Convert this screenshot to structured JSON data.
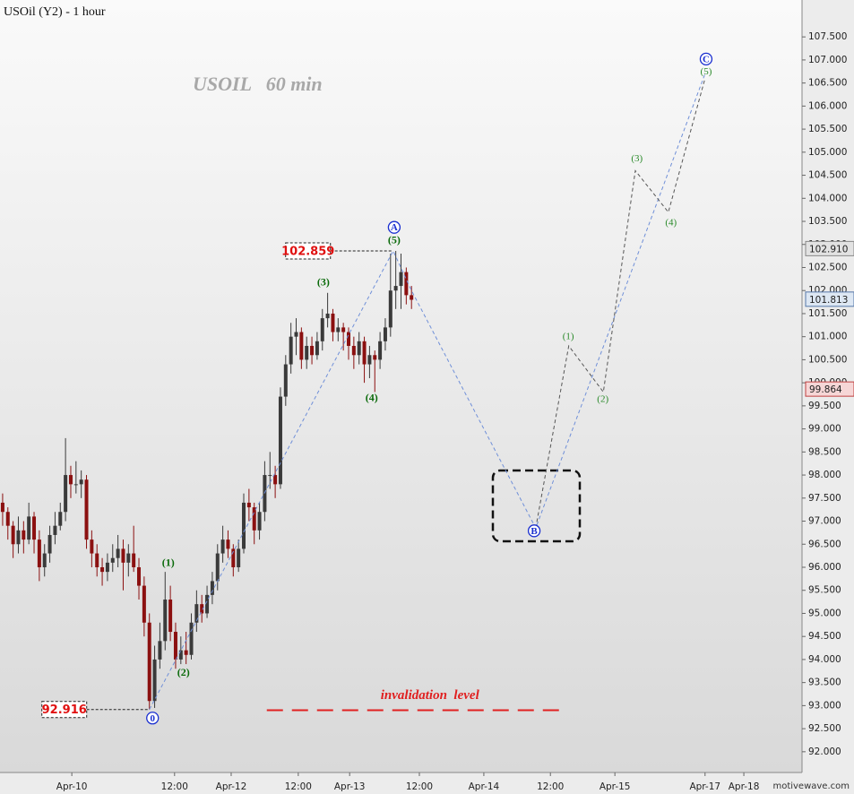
{
  "chart_data": {
    "type": "candlestick",
    "title": "USOil (Y2) - 1 hour",
    "watermark": "USOIL   60 min",
    "footer": "motivewave.com",
    "up_color": "#3a3a3a",
    "down_color": "#8b1010",
    "xlim": [
      -0.5,
      152.5
    ],
    "xticks": [
      {
        "value": 13.2,
        "label": "Apr-10"
      },
      {
        "value": 32.8,
        "label": "12:00"
      },
      {
        "value": 43.6,
        "label": "Apr-12"
      },
      {
        "value": 56.4,
        "label": "12:00"
      },
      {
        "value": 66.2,
        "label": "Apr-13"
      },
      {
        "value": 79.5,
        "label": "12:00"
      },
      {
        "value": 91.8,
        "label": "Apr-14"
      },
      {
        "value": 104.5,
        "label": "12:00"
      },
      {
        "value": 116.8,
        "label": "Apr-15"
      },
      {
        "value": 134,
        "label": "Apr-17"
      },
      {
        "value": 141.4,
        "label": "Apr-18"
      }
    ],
    "ylim": [
      91.55,
      108.3
    ],
    "yticks": [
      {
        "value": 92,
        "label": "92.000"
      },
      {
        "value": 92.5,
        "label": "92.500"
      },
      {
        "value": 93,
        "label": "93.000"
      },
      {
        "value": 93.5,
        "label": "93.500"
      },
      {
        "value": 94,
        "label": "94.000"
      },
      {
        "value": 94.5,
        "label": "94.500"
      },
      {
        "value": 95,
        "label": "95.000"
      },
      {
        "value": 95.5,
        "label": "95.500"
      },
      {
        "value": 96,
        "label": "96.000"
      },
      {
        "value": 96.5,
        "label": "96.500"
      },
      {
        "value": 97,
        "label": "97.000"
      },
      {
        "value": 97.5,
        "label": "97.500"
      },
      {
        "value": 98,
        "label": "98.000"
      },
      {
        "value": 98.5,
        "label": "98.500"
      },
      {
        "value": 99,
        "label": "99.000"
      },
      {
        "value": 99.5,
        "label": "99.500"
      },
      {
        "value": 100,
        "label": "100.000"
      },
      {
        "value": 100.5,
        "label": "100.500"
      },
      {
        "value": 101,
        "label": "101.000"
      },
      {
        "value": 101.5,
        "label": "101.500"
      },
      {
        "value": 102,
        "label": "102.000"
      },
      {
        "value": 102.5,
        "label": "102.500"
      },
      {
        "value": 103,
        "label": "103.000"
      },
      {
        "value": 103.5,
        "label": "103.500"
      },
      {
        "value": 104,
        "label": "104.000"
      },
      {
        "value": 104.5,
        "label": "104.500"
      },
      {
        "value": 105,
        "label": "105.000"
      },
      {
        "value": 105.5,
        "label": "105.500"
      },
      {
        "value": 106,
        "label": "106.000"
      },
      {
        "value": 106.5,
        "label": "106.500"
      },
      {
        "value": 107,
        "label": "107.000"
      },
      {
        "value": 107.5,
        "label": "107.500"
      }
    ],
    "ohlc": [
      [
        97.4,
        97.6,
        96.9,
        97.2
      ],
      [
        97.2,
        97.3,
        96.6,
        96.9
      ],
      [
        96.9,
        97.0,
        96.2,
        96.5
      ],
      [
        96.5,
        97.1,
        96.3,
        96.8
      ],
      [
        96.8,
        97.0,
        96.3,
        96.6
      ],
      [
        96.6,
        97.4,
        96.5,
        97.1
      ],
      [
        97.1,
        97.2,
        96.3,
        96.6
      ],
      [
        96.6,
        96.8,
        95.7,
        96.0
      ],
      [
        96.0,
        96.5,
        95.8,
        96.3
      ],
      [
        96.3,
        96.9,
        96.1,
        96.7
      ],
      [
        96.7,
        97.2,
        96.5,
        96.9
      ],
      [
        96.9,
        97.4,
        96.8,
        97.2
      ],
      [
        97.2,
        98.8,
        97.0,
        98.0
      ],
      [
        98.0,
        98.2,
        97.5,
        97.8
      ],
      [
        97.8,
        98.3,
        97.6,
        97.8
      ],
      [
        97.8,
        98.1,
        97.5,
        97.9
      ],
      [
        97.9,
        98.0,
        96.4,
        96.6
      ],
      [
        96.6,
        96.8,
        96.0,
        96.3
      ],
      [
        96.3,
        96.5,
        95.8,
        96.0
      ],
      [
        96.0,
        96.2,
        95.6,
        95.9
      ],
      [
        95.9,
        96.3,
        95.7,
        96.1
      ],
      [
        96.1,
        96.5,
        95.9,
        96.2
      ],
      [
        96.2,
        96.7,
        96.0,
        96.4
      ],
      [
        96.4,
        96.6,
        95.5,
        96.1
      ],
      [
        96.1,
        96.5,
        95.8,
        96.3
      ],
      [
        96.3,
        96.9,
        95.9,
        96.0
      ],
      [
        96.0,
        96.2,
        95.3,
        95.6
      ],
      [
        95.6,
        95.8,
        94.5,
        94.8
      ],
      [
        94.8,
        95.0,
        92.916,
        93.1
      ],
      [
        93.1,
        94.3,
        92.95,
        94.0
      ],
      [
        94.0,
        94.8,
        93.8,
        94.4
      ],
      [
        94.4,
        95.9,
        94.2,
        95.3
      ],
      [
        95.3,
        95.6,
        94.4,
        94.6
      ],
      [
        94.6,
        94.8,
        93.8,
        94.0
      ],
      [
        94.0,
        94.5,
        93.9,
        94.2
      ],
      [
        94.2,
        94.6,
        93.9,
        94.1
      ],
      [
        94.1,
        95.0,
        94.0,
        94.8
      ],
      [
        94.8,
        95.5,
        94.6,
        95.2
      ],
      [
        95.2,
        95.4,
        94.8,
        95.0
      ],
      [
        95.0,
        95.6,
        94.9,
        95.4
      ],
      [
        95.4,
        95.9,
        95.2,
        95.7
      ],
      [
        95.7,
        96.5,
        95.5,
        96.3
      ],
      [
        96.3,
        96.9,
        96.1,
        96.6
      ],
      [
        96.6,
        96.8,
        96.2,
        96.4
      ],
      [
        96.4,
        96.5,
        95.8,
        96.0
      ],
      [
        96.0,
        96.6,
        95.9,
        96.4
      ],
      [
        96.4,
        97.6,
        96.3,
        97.4
      ],
      [
        97.4,
        97.7,
        97.0,
        97.3
      ],
      [
        97.3,
        97.4,
        96.5,
        96.8
      ],
      [
        96.8,
        97.4,
        96.6,
        97.2
      ],
      [
        97.2,
        98.3,
        97.0,
        98.0
      ],
      [
        98.0,
        98.5,
        97.7,
        98.0
      ],
      [
        98.0,
        98.2,
        97.5,
        97.8
      ],
      [
        97.8,
        99.9,
        97.7,
        99.7
      ],
      [
        99.7,
        100.6,
        99.5,
        100.4
      ],
      [
        100.4,
        101.3,
        100.2,
        101.0
      ],
      [
        101.0,
        101.4,
        100.6,
        101.1
      ],
      [
        101.1,
        101.2,
        100.3,
        100.5
      ],
      [
        100.5,
        101.0,
        100.3,
        100.8
      ],
      [
        100.8,
        101.0,
        100.4,
        100.6
      ],
      [
        100.6,
        101.1,
        100.5,
        100.9
      ],
      [
        100.9,
        101.6,
        100.7,
        101.4
      ],
      [
        101.4,
        101.95,
        101.2,
        101.5
      ],
      [
        101.5,
        101.6,
        100.9,
        101.1
      ],
      [
        101.1,
        101.4,
        100.9,
        101.2
      ],
      [
        101.2,
        101.3,
        100.7,
        101.1
      ],
      [
        101.1,
        101.2,
        100.5,
        100.8
      ],
      [
        100.8,
        101.0,
        100.3,
        100.6
      ],
      [
        100.6,
        101.1,
        100.4,
        100.9
      ],
      [
        100.9,
        101.0,
        100.0,
        100.4
      ],
      [
        100.4,
        100.8,
        100.1,
        100.6
      ],
      [
        100.6,
        100.7,
        99.8,
        100.5
      ],
      [
        100.5,
        101.1,
        100.3,
        100.9
      ],
      [
        100.9,
        101.4,
        100.7,
        101.2
      ],
      [
        101.2,
        102.8,
        101.0,
        102.0
      ],
      [
        102.0,
        102.859,
        101.6,
        102.1
      ],
      [
        102.1,
        102.8,
        101.6,
        102.4
      ],
      [
        102.4,
        102.5,
        101.7,
        101.9
      ],
      [
        101.9,
        102.1,
        101.6,
        101.8
      ]
    ],
    "wave_labels": [
      {
        "label": "0",
        "x": 28.6,
        "y": 92.73,
        "style": "circled"
      },
      {
        "label": "(1)",
        "x": 31.6,
        "y": 96.08,
        "style": "actual"
      },
      {
        "label": "(2)",
        "x": 34.5,
        "y": 93.7,
        "style": "actual"
      },
      {
        "label": "(3)",
        "x": 61.2,
        "y": 102.16,
        "style": "actual"
      },
      {
        "label": "(4)",
        "x": 70.4,
        "y": 99.66,
        "style": "actual"
      },
      {
        "label": "(5)",
        "x": 74.7,
        "y": 103.08,
        "style": "actual"
      },
      {
        "label": "A",
        "x": 74.7,
        "y": 103.37,
        "style": "circled"
      },
      {
        "label": "B",
        "x": 101.4,
        "y": 96.79,
        "style": "circled"
      },
      {
        "label": "C",
        "x": 134.2,
        "y": 107.02,
        "style": "circled"
      },
      {
        "label": "(1)",
        "x": 107.9,
        "y": 100.99,
        "style": "projected"
      },
      {
        "label": "(2)",
        "x": 114.5,
        "y": 99.63,
        "style": "projected"
      },
      {
        "label": "(3)",
        "x": 121,
        "y": 104.85,
        "style": "projected"
      },
      {
        "label": "(4)",
        "x": 127.5,
        "y": 103.46,
        "style": "projected"
      },
      {
        "label": "(5)",
        "x": 134.2,
        "y": 106.74,
        "style": "projected"
      }
    ],
    "paths": [
      {
        "color": "#6f8fd8",
        "x": [
          28,
          74.5,
          78,
          101.7,
          134
        ],
        "y": [
          92.916,
          102.859,
          102.0,
          96.85,
          106.7
        ]
      },
      {
        "color": "#555555",
        "x": [
          101.7,
          108,
          114.6,
          120.7,
          127,
          134
        ],
        "y": [
          96.85,
          100.8,
          99.8,
          104.6,
          103.7,
          106.6
        ]
      }
    ],
    "price_marks": [
      {
        "value": 102.859,
        "x": 74.5
      },
      {
        "value": 92.916,
        "x": 28
      }
    ],
    "axis_flags": [
      {
        "value": 102.91,
        "label": "102.910",
        "color": "#888888"
      },
      {
        "value": 101.813,
        "label": "101.813",
        "color": "#5577aa"
      },
      {
        "value": 99.864,
        "label": "99.864",
        "color": "#c04040"
      }
    ],
    "invalidation": {
      "label": "invalidation  level",
      "value": 92.9,
      "x": [
        50.4,
        107.5
      ]
    }
  }
}
